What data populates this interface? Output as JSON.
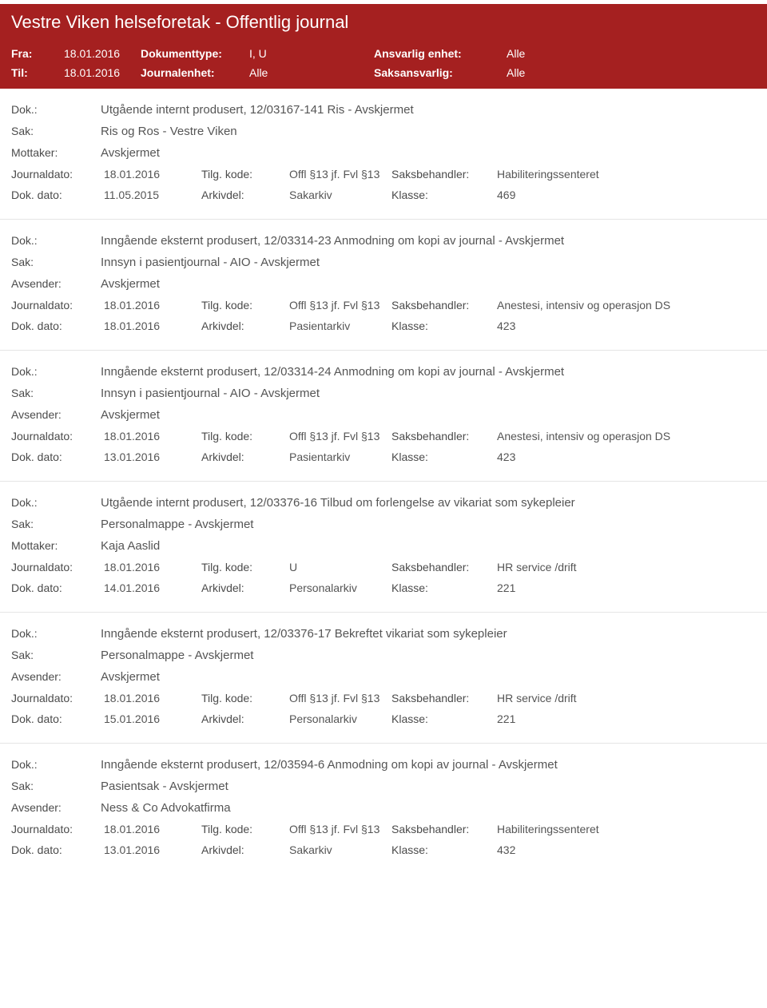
{
  "header": {
    "title": "Vestre Viken helseforetak - Offentlig journal"
  },
  "filters": {
    "fra_label": "Fra:",
    "fra_value": "18.01.2016",
    "til_label": "Til:",
    "til_value": "18.01.2016",
    "doktype_label": "Dokumenttype:",
    "doktype_value": "I, U",
    "journalenhet_label": "Journalenhet:",
    "journalenhet_value": "Alle",
    "ansvarlig_label": "Ansvarlig enhet:",
    "ansvarlig_value": "Alle",
    "saksansvarlig_label": "Saksansvarlig:",
    "saksansvarlig_value": "Alle"
  },
  "labels": {
    "dok": "Dok.:",
    "sak": "Sak:",
    "mottaker": "Mottaker:",
    "avsender": "Avsender:",
    "journaldato": "Journaldato:",
    "dokdato": "Dok. dato:",
    "tilgkode": "Tilg. kode:",
    "arkivdel": "Arkivdel:",
    "saksbehandler": "Saksbehandler:",
    "klasse": "Klasse:"
  },
  "records": [
    {
      "dok": "Utgående internt produsert, 12/03167-141 Ris - Avskjermet",
      "sak": "Ris og Ros - Vestre Viken",
      "party_label": "Mottaker:",
      "party_value": "Avskjermet",
      "journaldato": "18.01.2016",
      "tilgkode": "Offl §13 jf. Fvl §13",
      "saksbehandler": "Habiliteringssenteret",
      "dokdato": "11.05.2015",
      "arkivdel": "Sakarkiv",
      "klasse": "469"
    },
    {
      "dok": "Inngående eksternt produsert, 12/03314-23 Anmodning om kopi av journal - Avskjermet",
      "sak": "Innsyn i pasientjournal - AIO - Avskjermet",
      "party_label": "Avsender:",
      "party_value": "Avskjermet",
      "journaldato": "18.01.2016",
      "tilgkode": "Offl §13 jf. Fvl §13",
      "saksbehandler": "Anestesi, intensiv og operasjon DS",
      "dokdato": "18.01.2016",
      "arkivdel": "Pasientarkiv",
      "klasse": "423"
    },
    {
      "dok": "Inngående eksternt produsert, 12/03314-24 Anmodning om kopi av journal - Avskjermet",
      "sak": "Innsyn i pasientjournal - AIO - Avskjermet",
      "party_label": "Avsender:",
      "party_value": "Avskjermet",
      "journaldato": "18.01.2016",
      "tilgkode": "Offl §13 jf. Fvl §13",
      "saksbehandler": "Anestesi, intensiv og operasjon DS",
      "dokdato": "13.01.2016",
      "arkivdel": "Pasientarkiv",
      "klasse": "423"
    },
    {
      "dok": "Utgående internt produsert, 12/03376-16 Tilbud om forlengelse av vikariat som sykepleier",
      "sak": "Personalmappe - Avskjermet",
      "party_label": "Mottaker:",
      "party_value": "Kaja Aaslid",
      "journaldato": "18.01.2016",
      "tilgkode": "U",
      "saksbehandler": "HR service /drift",
      "dokdato": "14.01.2016",
      "arkivdel": "Personalarkiv",
      "klasse": "221"
    },
    {
      "dok": "Inngående eksternt produsert, 12/03376-17 Bekreftet vikariat som sykepleier",
      "sak": "Personalmappe - Avskjermet",
      "party_label": "Avsender:",
      "party_value": "Avskjermet",
      "journaldato": "18.01.2016",
      "tilgkode": "Offl §13 jf. Fvl §13",
      "saksbehandler": "HR service /drift",
      "dokdato": "15.01.2016",
      "arkivdel": "Personalarkiv",
      "klasse": "221"
    },
    {
      "dok": "Inngående eksternt produsert, 12/03594-6 Anmodning om kopi av journal - Avskjermet",
      "sak": "Pasientsak - Avskjermet",
      "party_label": "Avsender:",
      "party_value": "Ness & Co Advokatfirma",
      "journaldato": "18.01.2016",
      "tilgkode": "Offl §13 jf. Fvl §13",
      "saksbehandler": "Habiliteringssenteret",
      "dokdato": "13.01.2016",
      "arkivdel": "Sakarkiv",
      "klasse": "432"
    }
  ]
}
